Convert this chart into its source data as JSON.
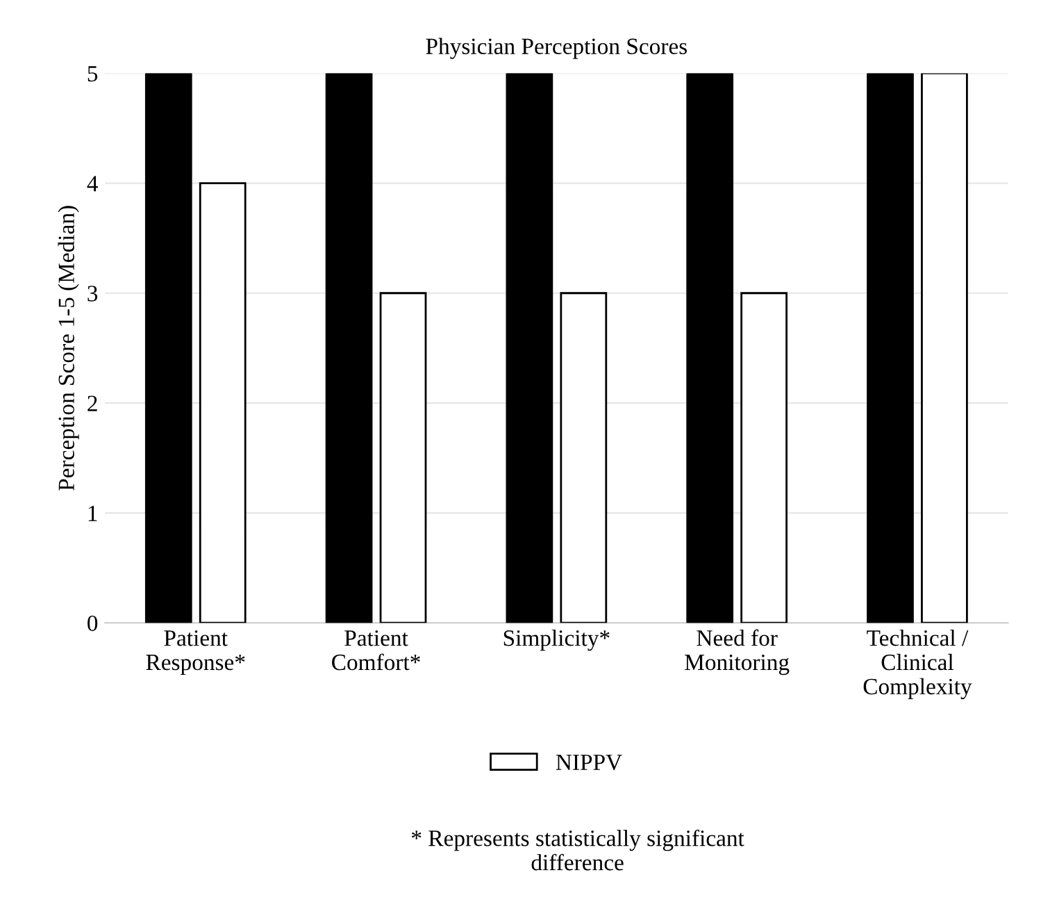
{
  "chart_data": {
    "type": "bar",
    "title": "Physician Perception Scores",
    "ylabel": "Perception Score 1-5 (Median)",
    "categories": [
      "Patient\nResponse*",
      "Patient\nComfort*",
      "Simplicity*",
      "Need for\nMonitoring",
      "Technical /\nClinical\nComplexity"
    ],
    "series": [
      {
        "color": "#000000",
        "values": [
          5,
          5,
          5,
          5,
          5
        ]
      },
      {
        "name": "NIPPV",
        "color": "#ffffff",
        "values": [
          4,
          3,
          3,
          3,
          5
        ]
      }
    ],
    "ylim": [
      0,
      5
    ],
    "yticks": [
      0,
      1,
      2,
      3,
      4,
      5
    ],
    "grid": "y",
    "legend": "bottom",
    "annotations": [
      "* Represents statistically significant\ndifference"
    ]
  }
}
